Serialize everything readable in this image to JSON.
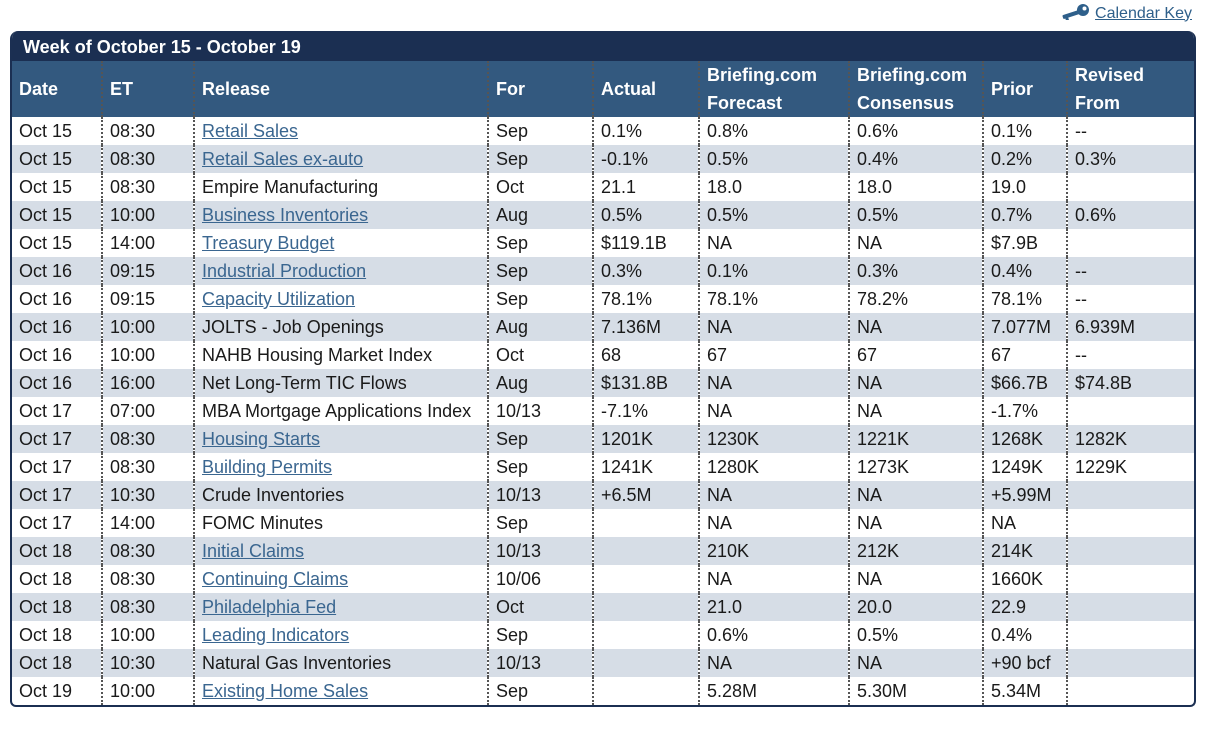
{
  "calendar_key": {
    "label": "Calendar Key",
    "icon": "key-icon"
  },
  "title": "Week of October 15 - October 19",
  "columns": [
    {
      "line1": "Date",
      "line2": ""
    },
    {
      "line1": "ET",
      "line2": ""
    },
    {
      "line1": "Release",
      "line2": ""
    },
    {
      "line1": "For",
      "line2": ""
    },
    {
      "line1": "Actual",
      "line2": ""
    },
    {
      "line1": "Briefing.com",
      "line2": "Forecast"
    },
    {
      "line1": "Briefing.com",
      "line2": "Consensus"
    },
    {
      "line1": "Prior",
      "line2": ""
    },
    {
      "line1": "Revised",
      "line2": "From"
    }
  ],
  "rows": [
    {
      "date": "Oct 15",
      "et": "08:30",
      "release": "Retail Sales",
      "link": true,
      "for": "Sep",
      "actual": "0.1%",
      "forecast": "0.8%",
      "consensus": "0.6%",
      "prior": "0.1%",
      "revised": "--"
    },
    {
      "date": "Oct 15",
      "et": "08:30",
      "release": "Retail Sales ex-auto",
      "link": true,
      "for": "Sep",
      "actual": "-0.1%",
      "forecast": "0.5%",
      "consensus": "0.4%",
      "prior": "0.2%",
      "revised": "0.3%"
    },
    {
      "date": "Oct 15",
      "et": "08:30",
      "release": "Empire Manufacturing",
      "link": false,
      "for": "Oct",
      "actual": "21.1",
      "forecast": "18.0",
      "consensus": "18.0",
      "prior": "19.0",
      "revised": ""
    },
    {
      "date": "Oct 15",
      "et": "10:00",
      "release": "Business Inventories",
      "link": true,
      "for": "Aug",
      "actual": "0.5%",
      "forecast": "0.5%",
      "consensus": "0.5%",
      "prior": "0.7%",
      "revised": "0.6%"
    },
    {
      "date": "Oct 15",
      "et": "14:00",
      "release": "Treasury Budget",
      "link": true,
      "for": "Sep",
      "actual": "$119.1B",
      "forecast": "NA",
      "consensus": "NA",
      "prior": "$7.9B",
      "revised": ""
    },
    {
      "date": "Oct 16",
      "et": "09:15",
      "release": "Industrial Production",
      "link": true,
      "for": "Sep",
      "actual": "0.3%",
      "forecast": "0.1%",
      "consensus": "0.3%",
      "prior": "0.4%",
      "revised": "--"
    },
    {
      "date": "Oct 16",
      "et": "09:15",
      "release": "Capacity Utilization",
      "link": true,
      "for": "Sep",
      "actual": "78.1%",
      "forecast": "78.1%",
      "consensus": "78.2%",
      "prior": "78.1%",
      "revised": "--"
    },
    {
      "date": "Oct 16",
      "et": "10:00",
      "release": "JOLTS - Job Openings",
      "link": false,
      "for": "Aug",
      "actual": "7.136M",
      "forecast": "NA",
      "consensus": "NA",
      "prior": "7.077M",
      "revised": "6.939M"
    },
    {
      "date": "Oct 16",
      "et": "10:00",
      "release": "NAHB Housing Market Index",
      "link": false,
      "for": "Oct",
      "actual": "68",
      "forecast": "67",
      "consensus": "67",
      "prior": "67",
      "revised": "--"
    },
    {
      "date": "Oct 16",
      "et": "16:00",
      "release": "Net Long-Term TIC Flows",
      "link": false,
      "for": "Aug",
      "actual": "$131.8B",
      "forecast": "NA",
      "consensus": "NA",
      "prior": "$66.7B",
      "revised": "$74.8B"
    },
    {
      "date": "Oct 17",
      "et": "07:00",
      "release": "MBA Mortgage Applications Index",
      "link": false,
      "wrap": true,
      "for": "10/13",
      "actual": "-7.1%",
      "forecast": "NA",
      "consensus": "NA",
      "prior": "-1.7%",
      "revised": ""
    },
    {
      "date": "Oct 17",
      "et": "08:30",
      "release": "Housing Starts",
      "link": true,
      "for": "Sep",
      "actual": "1201K",
      "forecast": "1230K",
      "consensus": "1221K",
      "prior": "1268K",
      "revised": "1282K"
    },
    {
      "date": "Oct 17",
      "et": "08:30",
      "release": "Building Permits",
      "link": true,
      "for": "Sep",
      "actual": "1241K",
      "forecast": "1280K",
      "consensus": "1273K",
      "prior": "1249K",
      "revised": "1229K"
    },
    {
      "date": "Oct 17",
      "et": "10:30",
      "release": "Crude Inventories",
      "link": false,
      "for": "10/13",
      "actual": "+6.5M",
      "forecast": "NA",
      "consensus": "NA",
      "prior": "+5.99M",
      "revised": ""
    },
    {
      "date": "Oct 17",
      "et": "14:00",
      "release": "FOMC Minutes",
      "link": false,
      "for": "Sep",
      "actual": "",
      "forecast": "NA",
      "consensus": "NA",
      "prior": "NA",
      "revised": ""
    },
    {
      "date": "Oct 18",
      "et": "08:30",
      "release": "Initial Claims",
      "link": true,
      "for": "10/13",
      "actual": "",
      "forecast": "210K",
      "consensus": "212K",
      "prior": "214K",
      "revised": ""
    },
    {
      "date": "Oct 18",
      "et": "08:30",
      "release": "Continuing Claims",
      "link": true,
      "for": "10/06",
      "actual": "",
      "forecast": "NA",
      "consensus": "NA",
      "prior": "1660K",
      "revised": ""
    },
    {
      "date": "Oct 18",
      "et": "08:30",
      "release": "Philadelphia Fed",
      "link": true,
      "for": "Oct",
      "actual": "",
      "forecast": "21.0",
      "consensus": "20.0",
      "prior": "22.9",
      "revised": ""
    },
    {
      "date": "Oct 18",
      "et": "10:00",
      "release": "Leading Indicators",
      "link": true,
      "for": "Sep",
      "actual": "",
      "forecast": "0.6%",
      "consensus": "0.5%",
      "prior": "0.4%",
      "revised": ""
    },
    {
      "date": "Oct 18",
      "et": "10:30",
      "release": "Natural Gas Inventories",
      "link": false,
      "for": "10/13",
      "actual": "",
      "forecast": "NA",
      "consensus": "NA",
      "prior": "+90 bcf",
      "revised": ""
    },
    {
      "date": "Oct 19",
      "et": "10:00",
      "release": "Existing Home Sales",
      "link": true,
      "for": "Sep",
      "actual": "",
      "forecast": "5.28M",
      "consensus": "5.30M",
      "prior": "5.34M",
      "revised": ""
    }
  ]
}
